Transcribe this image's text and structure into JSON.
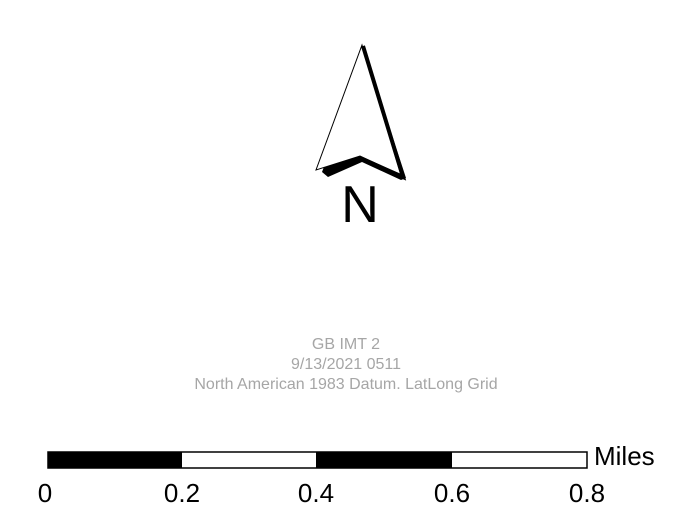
{
  "north_arrow": {
    "letter": "N",
    "icon": "north-arrow-icon"
  },
  "map_info": {
    "title": "GB IMT 2",
    "date_code": "9/13/2021 0511",
    "datum_note": "North American 1983 Datum. LatLong Grid",
    "color": "#a6a6a6"
  },
  "scale_bar": {
    "unit": "Miles",
    "ticks": [
      "0",
      "0.2",
      "0.4",
      "0.6",
      "0.8"
    ],
    "segment_colors": [
      "#000000",
      "#ffffff",
      "#000000",
      "#ffffff"
    ]
  }
}
